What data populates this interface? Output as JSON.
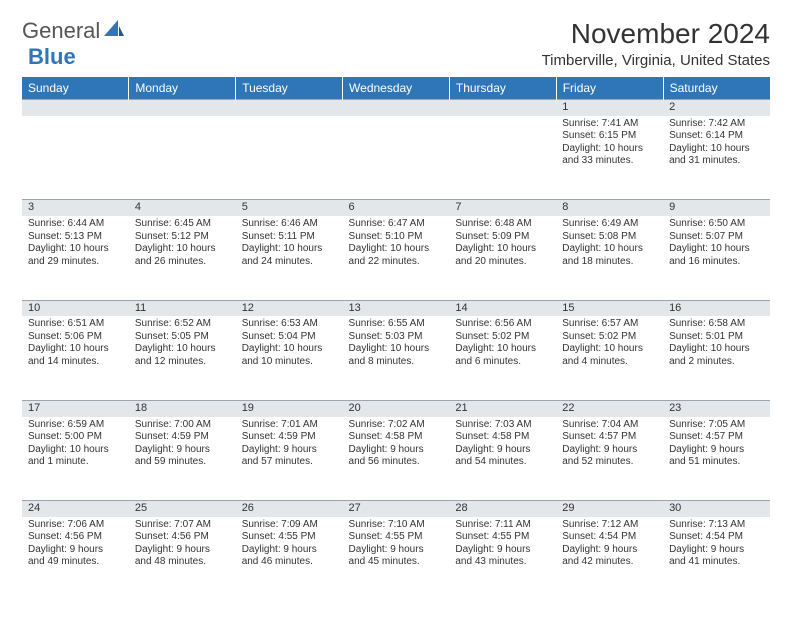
{
  "logo": {
    "text1": "General",
    "text2": "Blue"
  },
  "title": "November 2024",
  "location": "Timberville, Virginia, United States",
  "colors": {
    "header_bg": "#2f76b9",
    "header_text": "#ffffff",
    "daynum_bg": "#e4e7ea",
    "grid_line": "#9aa5b1",
    "body_text": "#333333",
    "page_bg": "#ffffff"
  },
  "day_headers": [
    "Sunday",
    "Monday",
    "Tuesday",
    "Wednesday",
    "Thursday",
    "Friday",
    "Saturday"
  ],
  "weeks": [
    {
      "nums": [
        "",
        "",
        "",
        "",
        "",
        "1",
        "2"
      ],
      "cells": [
        null,
        null,
        null,
        null,
        null,
        {
          "sunrise": "Sunrise: 7:41 AM",
          "sunset": "Sunset: 6:15 PM",
          "day1": "Daylight: 10 hours",
          "day2": "and 33 minutes."
        },
        {
          "sunrise": "Sunrise: 7:42 AM",
          "sunset": "Sunset: 6:14 PM",
          "day1": "Daylight: 10 hours",
          "day2": "and 31 minutes."
        }
      ]
    },
    {
      "nums": [
        "3",
        "4",
        "5",
        "6",
        "7",
        "8",
        "9"
      ],
      "cells": [
        {
          "sunrise": "Sunrise: 6:44 AM",
          "sunset": "Sunset: 5:13 PM",
          "day1": "Daylight: 10 hours",
          "day2": "and 29 minutes."
        },
        {
          "sunrise": "Sunrise: 6:45 AM",
          "sunset": "Sunset: 5:12 PM",
          "day1": "Daylight: 10 hours",
          "day2": "and 26 minutes."
        },
        {
          "sunrise": "Sunrise: 6:46 AM",
          "sunset": "Sunset: 5:11 PM",
          "day1": "Daylight: 10 hours",
          "day2": "and 24 minutes."
        },
        {
          "sunrise": "Sunrise: 6:47 AM",
          "sunset": "Sunset: 5:10 PM",
          "day1": "Daylight: 10 hours",
          "day2": "and 22 minutes."
        },
        {
          "sunrise": "Sunrise: 6:48 AM",
          "sunset": "Sunset: 5:09 PM",
          "day1": "Daylight: 10 hours",
          "day2": "and 20 minutes."
        },
        {
          "sunrise": "Sunrise: 6:49 AM",
          "sunset": "Sunset: 5:08 PM",
          "day1": "Daylight: 10 hours",
          "day2": "and 18 minutes."
        },
        {
          "sunrise": "Sunrise: 6:50 AM",
          "sunset": "Sunset: 5:07 PM",
          "day1": "Daylight: 10 hours",
          "day2": "and 16 minutes."
        }
      ]
    },
    {
      "nums": [
        "10",
        "11",
        "12",
        "13",
        "14",
        "15",
        "16"
      ],
      "cells": [
        {
          "sunrise": "Sunrise: 6:51 AM",
          "sunset": "Sunset: 5:06 PM",
          "day1": "Daylight: 10 hours",
          "day2": "and 14 minutes."
        },
        {
          "sunrise": "Sunrise: 6:52 AM",
          "sunset": "Sunset: 5:05 PM",
          "day1": "Daylight: 10 hours",
          "day2": "and 12 minutes."
        },
        {
          "sunrise": "Sunrise: 6:53 AM",
          "sunset": "Sunset: 5:04 PM",
          "day1": "Daylight: 10 hours",
          "day2": "and 10 minutes."
        },
        {
          "sunrise": "Sunrise: 6:55 AM",
          "sunset": "Sunset: 5:03 PM",
          "day1": "Daylight: 10 hours",
          "day2": "and 8 minutes."
        },
        {
          "sunrise": "Sunrise: 6:56 AM",
          "sunset": "Sunset: 5:02 PM",
          "day1": "Daylight: 10 hours",
          "day2": "and 6 minutes."
        },
        {
          "sunrise": "Sunrise: 6:57 AM",
          "sunset": "Sunset: 5:02 PM",
          "day1": "Daylight: 10 hours",
          "day2": "and 4 minutes."
        },
        {
          "sunrise": "Sunrise: 6:58 AM",
          "sunset": "Sunset: 5:01 PM",
          "day1": "Daylight: 10 hours",
          "day2": "and 2 minutes."
        }
      ]
    },
    {
      "nums": [
        "17",
        "18",
        "19",
        "20",
        "21",
        "22",
        "23"
      ],
      "cells": [
        {
          "sunrise": "Sunrise: 6:59 AM",
          "sunset": "Sunset: 5:00 PM",
          "day1": "Daylight: 10 hours",
          "day2": "and 1 minute."
        },
        {
          "sunrise": "Sunrise: 7:00 AM",
          "sunset": "Sunset: 4:59 PM",
          "day1": "Daylight: 9 hours",
          "day2": "and 59 minutes."
        },
        {
          "sunrise": "Sunrise: 7:01 AM",
          "sunset": "Sunset: 4:59 PM",
          "day1": "Daylight: 9 hours",
          "day2": "and 57 minutes."
        },
        {
          "sunrise": "Sunrise: 7:02 AM",
          "sunset": "Sunset: 4:58 PM",
          "day1": "Daylight: 9 hours",
          "day2": "and 56 minutes."
        },
        {
          "sunrise": "Sunrise: 7:03 AM",
          "sunset": "Sunset: 4:58 PM",
          "day1": "Daylight: 9 hours",
          "day2": "and 54 minutes."
        },
        {
          "sunrise": "Sunrise: 7:04 AM",
          "sunset": "Sunset: 4:57 PM",
          "day1": "Daylight: 9 hours",
          "day2": "and 52 minutes."
        },
        {
          "sunrise": "Sunrise: 7:05 AM",
          "sunset": "Sunset: 4:57 PM",
          "day1": "Daylight: 9 hours",
          "day2": "and 51 minutes."
        }
      ]
    },
    {
      "nums": [
        "24",
        "25",
        "26",
        "27",
        "28",
        "29",
        "30"
      ],
      "cells": [
        {
          "sunrise": "Sunrise: 7:06 AM",
          "sunset": "Sunset: 4:56 PM",
          "day1": "Daylight: 9 hours",
          "day2": "and 49 minutes."
        },
        {
          "sunrise": "Sunrise: 7:07 AM",
          "sunset": "Sunset: 4:56 PM",
          "day1": "Daylight: 9 hours",
          "day2": "and 48 minutes."
        },
        {
          "sunrise": "Sunrise: 7:09 AM",
          "sunset": "Sunset: 4:55 PM",
          "day1": "Daylight: 9 hours",
          "day2": "and 46 minutes."
        },
        {
          "sunrise": "Sunrise: 7:10 AM",
          "sunset": "Sunset: 4:55 PM",
          "day1": "Daylight: 9 hours",
          "day2": "and 45 minutes."
        },
        {
          "sunrise": "Sunrise: 7:11 AM",
          "sunset": "Sunset: 4:55 PM",
          "day1": "Daylight: 9 hours",
          "day2": "and 43 minutes."
        },
        {
          "sunrise": "Sunrise: 7:12 AM",
          "sunset": "Sunset: 4:54 PM",
          "day1": "Daylight: 9 hours",
          "day2": "and 42 minutes."
        },
        {
          "sunrise": "Sunrise: 7:13 AM",
          "sunset": "Sunset: 4:54 PM",
          "day1": "Daylight: 9 hours",
          "day2": "and 41 minutes."
        }
      ]
    }
  ]
}
